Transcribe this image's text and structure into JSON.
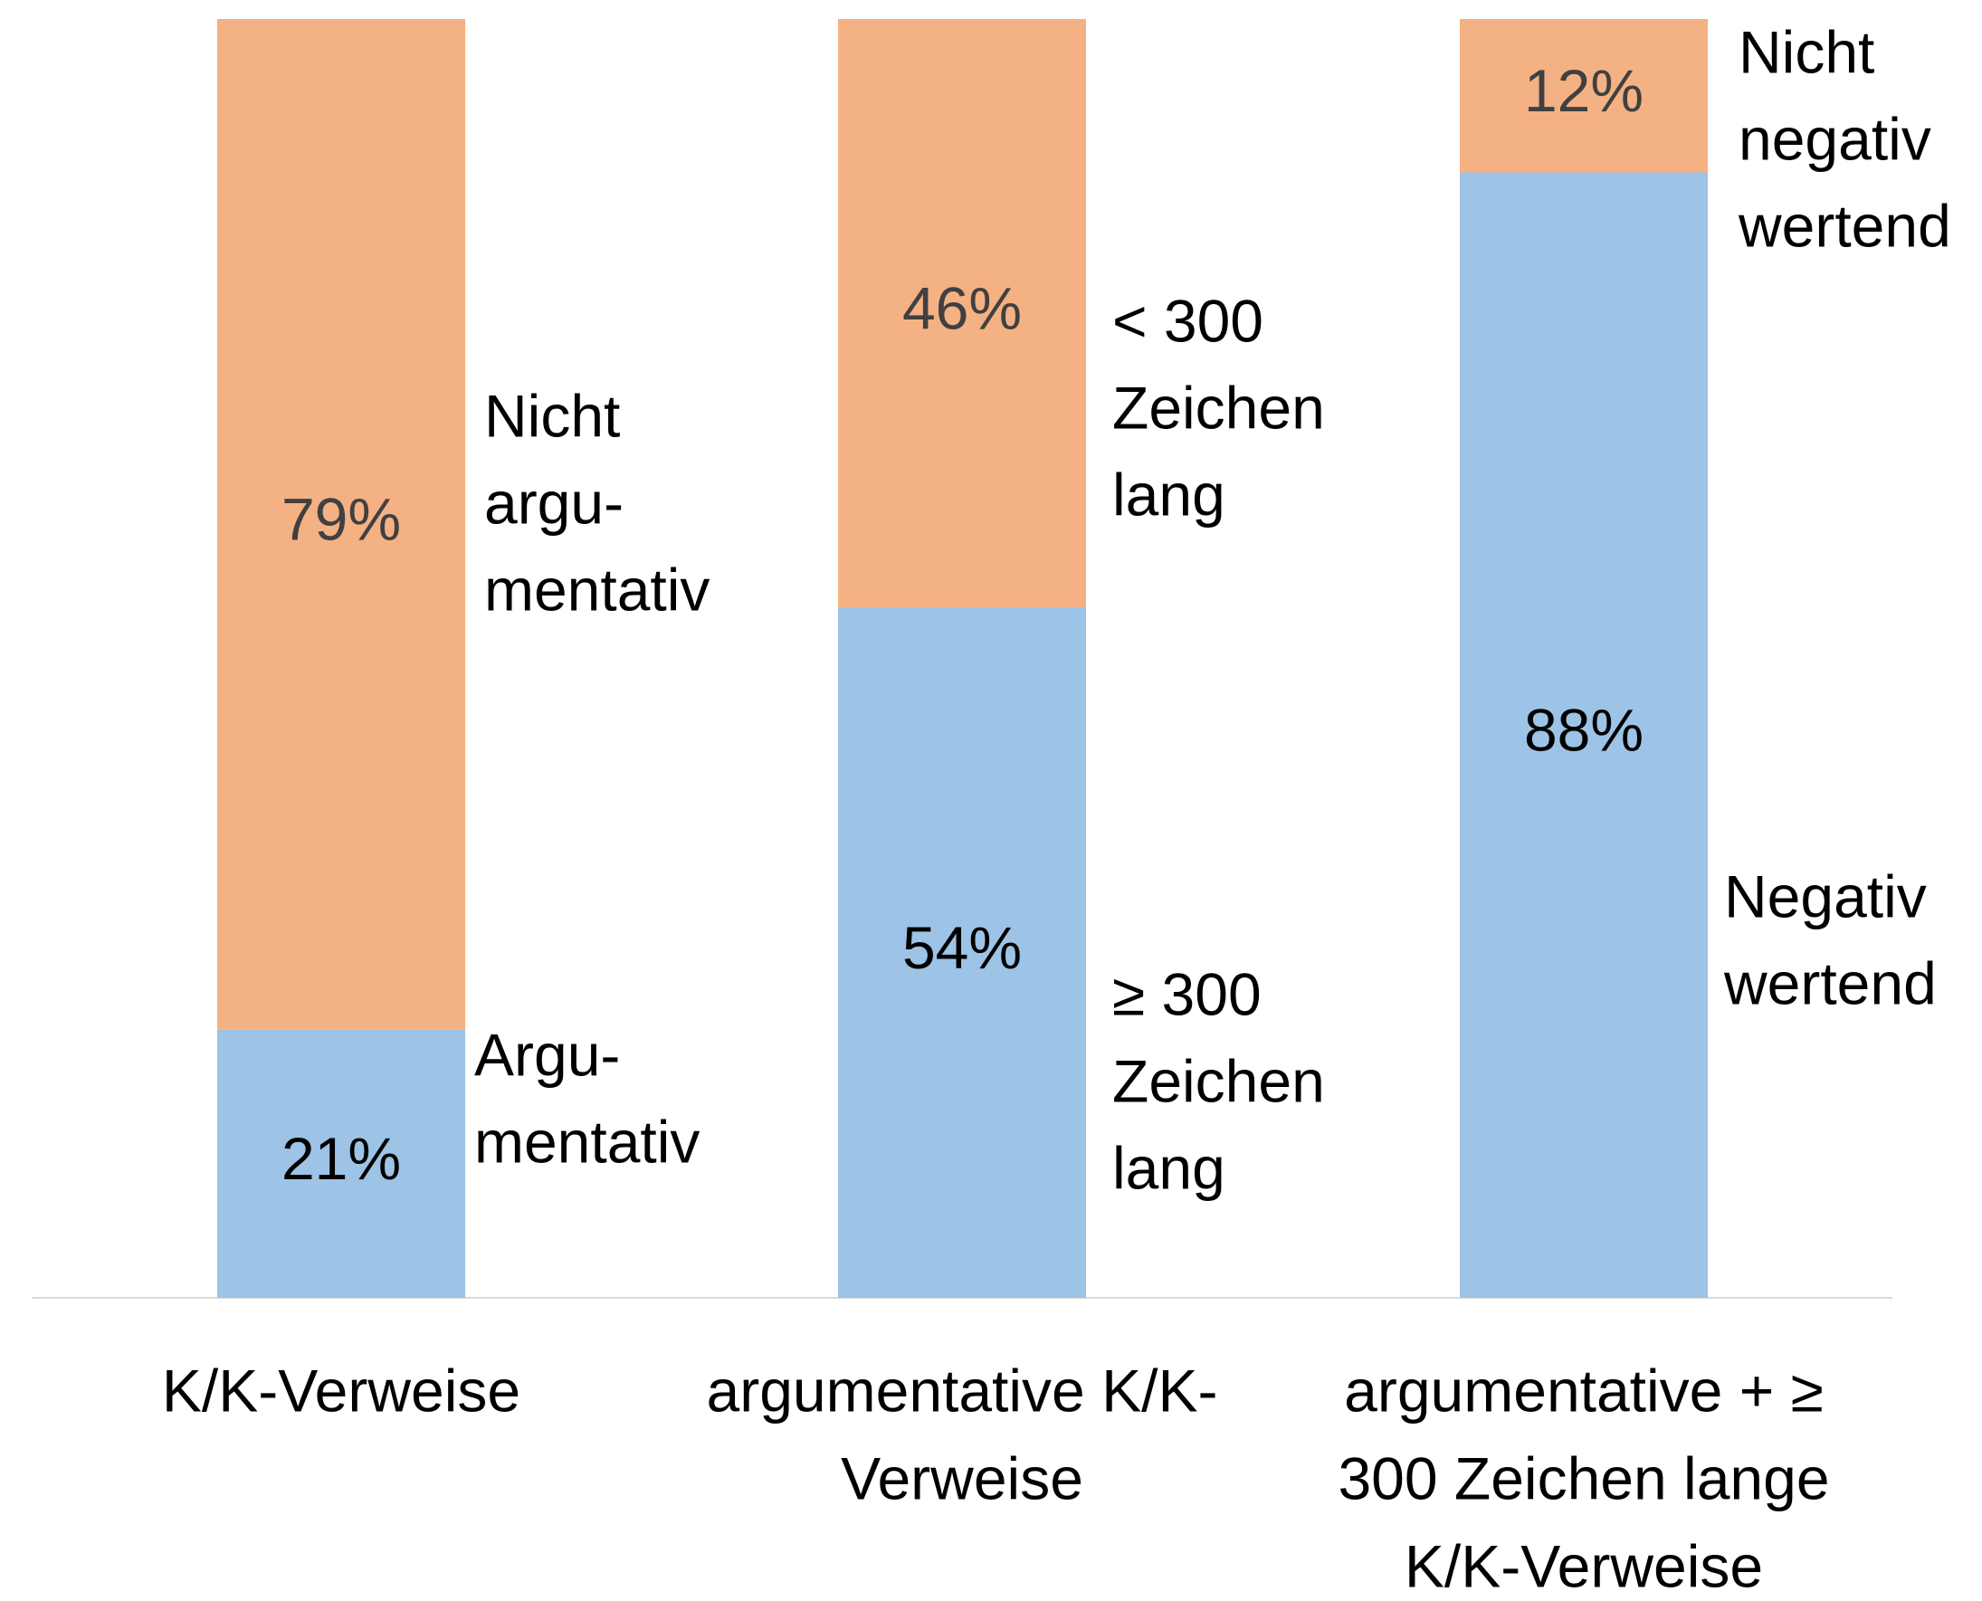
{
  "chart_data": {
    "type": "stacked_bar",
    "categories": [
      [
        "K/K-Verweise"
      ],
      [
        "argumentative K/K-",
        "Verweise"
      ],
      [
        "argumentative + ≥",
        "300 Zeichen lange",
        "K/K-Verweise"
      ]
    ],
    "ylim": [
      0,
      100
    ],
    "series": [
      {
        "color": "#9dc3e6",
        "label_color": "#000000",
        "values": [
          21,
          54,
          88
        ],
        "value_labels": [
          "21%",
          "54%",
          "88%"
        ],
        "segment_labels": [
          [
            "Argu-",
            "mentativ"
          ],
          [
            "≥ 300",
            "Zeichen",
            "lang"
          ],
          [
            "Negativ",
            "wertend"
          ]
        ]
      },
      {
        "color": "#f4b183",
        "label_color": "#404040",
        "values": [
          79,
          46,
          12
        ],
        "value_labels": [
          "79%",
          "46%",
          "12%"
        ],
        "segment_labels": [
          [
            "Nicht",
            "argu-",
            "mentativ"
          ],
          [
            "< 300",
            "Zeichen",
            "lang"
          ],
          [
            "Nicht",
            "negativ",
            "wertend"
          ]
        ]
      }
    ]
  }
}
